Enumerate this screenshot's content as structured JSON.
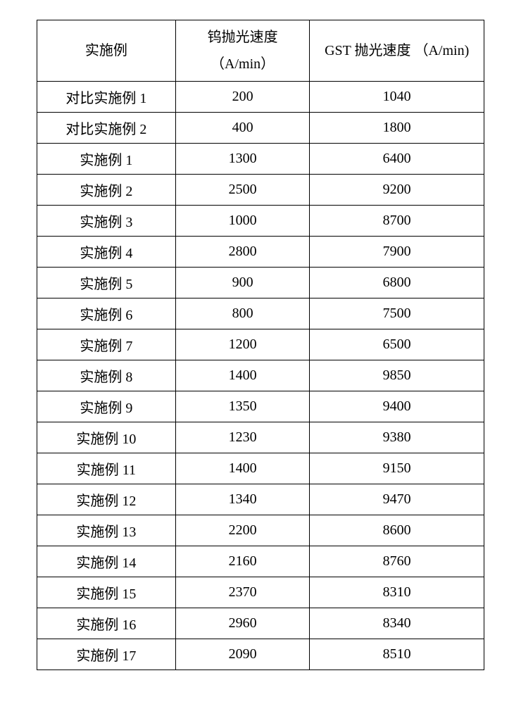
{
  "table": {
    "columns": [
      {
        "header_html": "实施例"
      },
      {
        "header_html": "钨抛光速度<br>（A/min）"
      },
      {
        "header_html": "GST 抛光速度 （A/min)"
      }
    ],
    "rows": [
      [
        "对比实施例 1",
        "200",
        "1040"
      ],
      [
        "对比实施例 2",
        "400",
        "1800"
      ],
      [
        "实施例 1",
        "1300",
        "6400"
      ],
      [
        "实施例 2",
        "2500",
        "9200"
      ],
      [
        "实施例 3",
        "1000",
        "8700"
      ],
      [
        "实施例 4",
        "2800",
        "7900"
      ],
      [
        "实施例 5",
        "900",
        "6800"
      ],
      [
        "实施例 6",
        "800",
        "7500"
      ],
      [
        "实施例 7",
        "1200",
        "6500"
      ],
      [
        "实施例 8",
        "1400",
        "9850"
      ],
      [
        "实施例 9",
        "1350",
        "9400"
      ],
      [
        "实施例 10",
        "1230",
        "9380"
      ],
      [
        "实施例 11",
        "1400",
        "9150"
      ],
      [
        "实施例 12",
        "1340",
        "9470"
      ],
      [
        "实施例 13",
        "2200",
        "8600"
      ],
      [
        "实施例 14",
        "2160",
        "8760"
      ],
      [
        "实施例 15",
        "2370",
        "8310"
      ],
      [
        "实施例 16",
        "2960",
        "8340"
      ],
      [
        "实施例 17",
        "2090",
        "8510"
      ]
    ]
  }
}
